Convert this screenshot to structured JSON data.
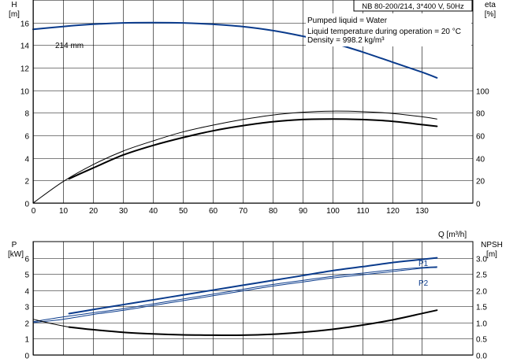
{
  "window": {
    "title": "NB 80-200/214, 3*400 V, 50Hz"
  },
  "info": {
    "lines": [
      "Pumped liquid = Water",
      "Liquid temperature during operation = 20 °C",
      "Density = 998.2 kg/m³"
    ]
  },
  "colors": {
    "blue": "#0a3b8c",
    "black": "#000000",
    "grid": "#000000"
  },
  "chart_data": [
    {
      "type": "line",
      "panel": "top",
      "title": "",
      "xlabel": "Q [m³/h]",
      "x_ticks": [
        0,
        10,
        20,
        30,
        40,
        50,
        60,
        70,
        80,
        90,
        100,
        110,
        120,
        130
      ],
      "xlim": [
        0,
        147
      ],
      "left_axis": {
        "label_top": "H",
        "label_unit": "[m]",
        "ylim": [
          0,
          18
        ],
        "ticks": [
          0,
          2,
          4,
          6,
          8,
          10,
          12,
          14,
          16
        ]
      },
      "right_axis": {
        "label_top": "eta",
        "label_unit": "[%]",
        "ylim": [
          0,
          180
        ],
        "ticks": [
          0,
          20,
          40,
          60,
          80,
          100
        ]
      },
      "grid": true,
      "annotations": [
        "214 mm"
      ],
      "series": [
        {
          "axis": "left",
          "color": "#0a3b8c",
          "width": 2,
          "x": [
            0,
            10,
            20,
            30,
            40,
            50,
            60,
            70,
            80,
            90,
            100,
            110,
            120,
            130,
            135
          ],
          "y": [
            15.4,
            15.65,
            15.85,
            15.97,
            16.0,
            15.97,
            15.85,
            15.65,
            15.3,
            14.8,
            14.2,
            13.4,
            12.5,
            11.6,
            11.1
          ]
        },
        {
          "axis": "right",
          "color": "#000000",
          "width": 1,
          "x": [
            0,
            10,
            20,
            30,
            40,
            50,
            60,
            70,
            80,
            90,
            100,
            110,
            120,
            130,
            135
          ],
          "y": [
            0,
            19,
            34,
            46,
            55,
            63,
            69,
            74,
            78,
            80.5,
            81.5,
            81,
            79.5,
            76.5,
            74.5
          ]
        },
        {
          "axis": "right",
          "color": "#000000",
          "width": 2,
          "x": [
            12,
            20,
            30,
            40,
            50,
            60,
            70,
            80,
            90,
            100,
            110,
            120,
            130,
            135
          ],
          "y": [
            21.5,
            31,
            42.5,
            51,
            58,
            64,
            68.5,
            72,
            74,
            74.5,
            74,
            72.5,
            69.5,
            68
          ]
        }
      ]
    },
    {
      "type": "line",
      "panel": "bottom",
      "title": "",
      "xlabel": "",
      "xlim": [
        0,
        147
      ],
      "left_axis": {
        "label_top": "P",
        "label_unit": "[kW]",
        "ylim": [
          0,
          7
        ],
        "ticks": [
          0,
          1,
          2,
          3,
          4,
          5,
          6
        ]
      },
      "right_axis": {
        "label_top": "NPSH",
        "label_unit": "[m]",
        "ylim": [
          0,
          3.5
        ],
        "ticks": [
          "0.0",
          "0.5",
          "1.0",
          "1.5",
          "2.0",
          "2.5",
          "3.0"
        ]
      },
      "grid": true,
      "series": [
        {
          "name": "P1",
          "axis": "left",
          "color": "#0a3b8c",
          "width": 2,
          "x": [
            12,
            20,
            30,
            40,
            50,
            60,
            70,
            80,
            90,
            100,
            110,
            120,
            130,
            135
          ],
          "y": [
            2.55,
            2.8,
            3.1,
            3.4,
            3.7,
            4.0,
            4.3,
            4.6,
            4.9,
            5.2,
            5.45,
            5.7,
            5.9,
            6.0
          ]
        },
        {
          "axis": "left",
          "color": "#0a3b8c",
          "width": 1,
          "x": [
            0,
            10,
            20,
            30,
            40,
            50,
            60,
            70,
            80,
            90,
            100,
            110,
            120,
            130,
            135
          ],
          "y": [
            2.05,
            2.35,
            2.6,
            2.85,
            3.15,
            3.45,
            3.75,
            4.05,
            4.35,
            4.6,
            4.85,
            5.05,
            5.25,
            5.4,
            5.45
          ]
        },
        {
          "name": "P2",
          "axis": "left",
          "color": "#0a3b8c",
          "width": 1,
          "x": [
            0,
            10,
            20,
            30,
            40,
            50,
            60,
            70,
            80,
            90,
            100,
            110,
            120,
            130,
            135
          ],
          "y": [
            2.0,
            2.2,
            2.5,
            2.75,
            3.05,
            3.35,
            3.65,
            3.95,
            4.25,
            4.5,
            4.75,
            4.95,
            5.15,
            5.35,
            5.4
          ]
        },
        {
          "axis": "right",
          "color": "#000000",
          "width": 2,
          "x": [
            12,
            20,
            30,
            40,
            50,
            60,
            70,
            80,
            90,
            100,
            110,
            120,
            130,
            135
          ],
          "y": [
            0.86,
            0.78,
            0.7,
            0.65,
            0.62,
            0.61,
            0.61,
            0.64,
            0.7,
            0.79,
            0.92,
            1.08,
            1.28,
            1.38
          ]
        },
        {
          "axis": "right",
          "color": "#000000",
          "width": 1,
          "x": [
            0,
            6,
            12
          ],
          "y": [
            1.1,
            0.97,
            0.86
          ]
        }
      ]
    }
  ]
}
